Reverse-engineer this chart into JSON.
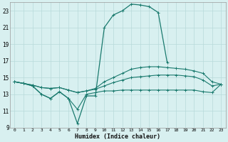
{
  "xlabel": "Humidex (Indice chaleur)",
  "x_values": [
    0,
    1,
    2,
    3,
    4,
    5,
    6,
    7,
    8,
    9,
    10,
    11,
    12,
    13,
    14,
    15,
    16,
    17,
    18,
    19,
    20,
    21,
    22,
    23
  ],
  "line_peak": [
    14.5,
    14.3,
    14.0,
    13.0,
    12.5,
    13.3,
    12.5,
    9.5,
    12.8,
    12.8,
    21.0,
    22.5,
    23.0,
    23.8,
    23.7,
    23.5,
    22.8,
    16.8,
    null,
    null,
    null,
    null,
    null,
    null
  ],
  "line_upper": [
    14.5,
    14.3,
    14.1,
    13.8,
    13.7,
    13.8,
    13.5,
    13.2,
    13.4,
    13.7,
    14.5,
    15.0,
    15.5,
    16.0,
    16.2,
    16.3,
    16.3,
    16.2,
    16.1,
    16.0,
    15.8,
    15.5,
    14.5,
    14.2
  ],
  "line_mid": [
    14.5,
    14.3,
    14.1,
    13.8,
    13.7,
    13.8,
    13.5,
    13.2,
    13.4,
    13.6,
    14.0,
    14.4,
    14.7,
    15.0,
    15.1,
    15.2,
    15.3,
    15.3,
    15.3,
    15.2,
    15.1,
    14.7,
    14.0,
    14.2
  ],
  "line_lower": [
    14.5,
    14.3,
    14.0,
    13.0,
    12.5,
    13.3,
    12.5,
    11.2,
    13.0,
    13.2,
    13.4,
    13.4,
    13.5,
    13.5,
    13.5,
    13.5,
    13.5,
    13.5,
    13.5,
    13.5,
    13.5,
    13.3,
    13.2,
    14.2
  ],
  "color": "#1a7a6e",
  "bg_color": "#d8f0f0",
  "grid_color": "#b8dada",
  "ylim": [
    9,
    24
  ],
  "yticks": [
    9,
    11,
    13,
    15,
    17,
    19,
    21,
    23
  ],
  "xticks": [
    0,
    1,
    2,
    3,
    4,
    5,
    6,
    7,
    8,
    9,
    10,
    11,
    12,
    13,
    14,
    15,
    16,
    17,
    18,
    19,
    20,
    21,
    22,
    23
  ]
}
